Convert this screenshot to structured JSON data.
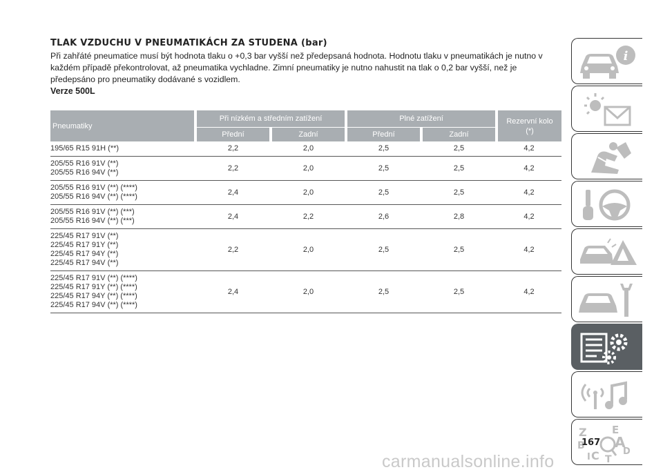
{
  "heading": "TLAK VZDUCHU V PNEUMATIKÁCH ZA STUDENA (bar)",
  "intro": "Při zahřáté pneumatice musí být hodnota tlaku o +0,3 bar vyšší než předepsaná hodnota. Hodnotu tlaku v pneumatikách je nutno v každém případě překontrolovat, až pneumatika vychladne. Zimní pneumatiky je nutno nahustit na tlak o 0,2 bar vyšší, než je předepsáno pro pneumatiky dodávané s vozidlem.",
  "version": "Verze 500L",
  "table": {
    "col_tyre": "Pneumatiky",
    "group_low": "Při nízkém a středním zatížení",
    "group_full": "Plné zatížení",
    "col_spare": "Rezervní kolo (*)",
    "front": "Přední",
    "rear": "Zadní",
    "rows": [
      {
        "tyres": [
          "195/65 R15 91H (**)"
        ],
        "values": [
          "2,2",
          "2,0",
          "2,5",
          "2,5",
          "4,2"
        ]
      },
      {
        "tyres": [
          "205/55 R16 91V (**)",
          "205/55 R16 94V (**)"
        ],
        "values": [
          "2,2",
          "2,0",
          "2,5",
          "2,5",
          "4,2"
        ]
      },
      {
        "tyres": [
          "205/55 R16 91V (**) (****)",
          "205/55 R16 94V (**) (****)"
        ],
        "values": [
          "2,4",
          "2,0",
          "2,5",
          "2,5",
          "4,2"
        ]
      },
      {
        "tyres": [
          "205/55 R16 91V (**) (***)",
          "205/55 R16 94V (**) (***)"
        ],
        "values": [
          "2,4",
          "2,2",
          "2,6",
          "2,8",
          "4,2"
        ]
      },
      {
        "tyres": [
          "225/45 R17 91V (**)",
          "225/45 R17 91Y (**)",
          "225/45 R17 94Y (**)",
          "225/45 R17 94V (**)"
        ],
        "values": [
          "2,2",
          "2,0",
          "2,5",
          "2,5",
          "4,2"
        ]
      },
      {
        "tyres": [
          "225/45 R17 91V (**) (****)",
          "225/45 R17 91Y (**) (****)",
          "225/45 R17 94Y (**) (****)",
          "225/45 R17 94V (**) (****)"
        ],
        "values": [
          "2,4",
          "2,0",
          "2,5",
          "2,5",
          "4,2"
        ]
      }
    ]
  },
  "sidebar": {
    "active_index": 5,
    "tabs": [
      {
        "icon": "car-info-icon"
      },
      {
        "icon": "warning-lights-icon"
      },
      {
        "icon": "airbag-seat-icon"
      },
      {
        "icon": "key-steering-wheel-icon"
      },
      {
        "icon": "car-crash-icon"
      },
      {
        "icon": "car-service-icon"
      },
      {
        "icon": "specifications-icon"
      },
      {
        "icon": "multimedia-icon"
      },
      {
        "icon": "index-icon"
      }
    ],
    "index_letters": [
      "Z",
      "E",
      "B",
      "A",
      "C",
      "D",
      "T",
      "I"
    ]
  },
  "page_number": "167",
  "watermark": "carmanualsonline.info",
  "colors": {
    "header_bg": "#a9aeb2",
    "active_tab": "#5a5f63",
    "icon_gray": "#bdbdbd"
  }
}
